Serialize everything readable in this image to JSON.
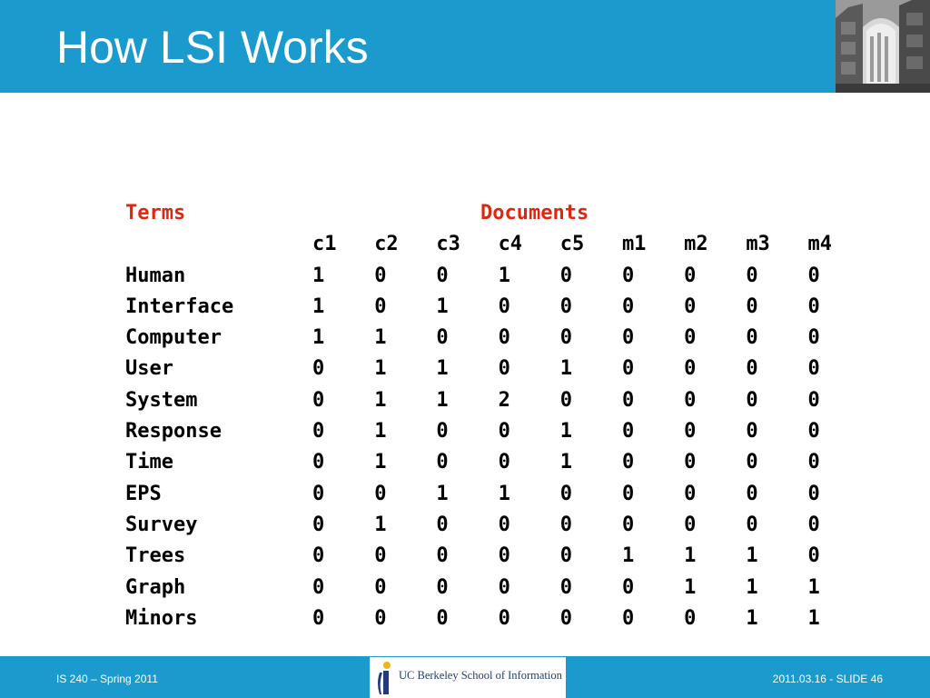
{
  "slide": {
    "title": "How LSI Works"
  },
  "table": {
    "terms_header": "Terms",
    "documents_header": "Documents",
    "columns": [
      "c1",
      "c2",
      "c3",
      "c4",
      "c5",
      "m1",
      "m2",
      "m3",
      "m4"
    ],
    "rows": [
      {
        "term": "Human",
        "values": [
          "1",
          "0",
          "0",
          "1",
          "0",
          "0",
          "0",
          "0",
          "0"
        ]
      },
      {
        "term": "Interface",
        "values": [
          "1",
          "0",
          "1",
          "0",
          "0",
          "0",
          "0",
          "0",
          "0"
        ]
      },
      {
        "term": "Computer",
        "values": [
          "1",
          "1",
          "0",
          "0",
          "0",
          "0",
          "0",
          "0",
          "0"
        ]
      },
      {
        "term": "User",
        "values": [
          "0",
          "1",
          "1",
          "0",
          "1",
          "0",
          "0",
          "0",
          "0"
        ]
      },
      {
        "term": "System",
        "values": [
          "0",
          "1",
          "1",
          "2",
          "0",
          "0",
          "0",
          "0",
          "0"
        ]
      },
      {
        "term": "Response",
        "values": [
          "0",
          "1",
          "0",
          "0",
          "1",
          "0",
          "0",
          "0",
          "0"
        ]
      },
      {
        "term": "Time",
        "values": [
          "0",
          "1",
          "0",
          "0",
          "1",
          "0",
          "0",
          "0",
          "0"
        ]
      },
      {
        "term": "EPS",
        "values": [
          "0",
          "0",
          "1",
          "1",
          "0",
          "0",
          "0",
          "0",
          "0"
        ]
      },
      {
        "term": "Survey",
        "values": [
          "0",
          "1",
          "0",
          "0",
          "0",
          "0",
          "0",
          "0",
          "0"
        ]
      },
      {
        "term": "Trees",
        "values": [
          "0",
          "0",
          "0",
          "0",
          "0",
          "1",
          "1",
          "1",
          "0"
        ]
      },
      {
        "term": "Graph",
        "values": [
          "0",
          "0",
          "0",
          "0",
          "0",
          "0",
          "1",
          "1",
          "1"
        ]
      },
      {
        "term": "Minors",
        "values": [
          "0",
          "0",
          "0",
          "0",
          "0",
          "0",
          "0",
          "1",
          "1"
        ]
      }
    ]
  },
  "footer": {
    "left": "IS 240 – Spring 2011",
    "logo_text": "UC Berkeley School of Information",
    "right": "2011.03.16 - SLIDE 46"
  },
  "colors": {
    "header_bar": "#1a9acd",
    "accent_red": "#e0260c",
    "logo_blue": "#1f3d7a"
  },
  "icons": {
    "header_photo": "building-archway-photo",
    "logo": "ischool-i-logo-icon"
  }
}
